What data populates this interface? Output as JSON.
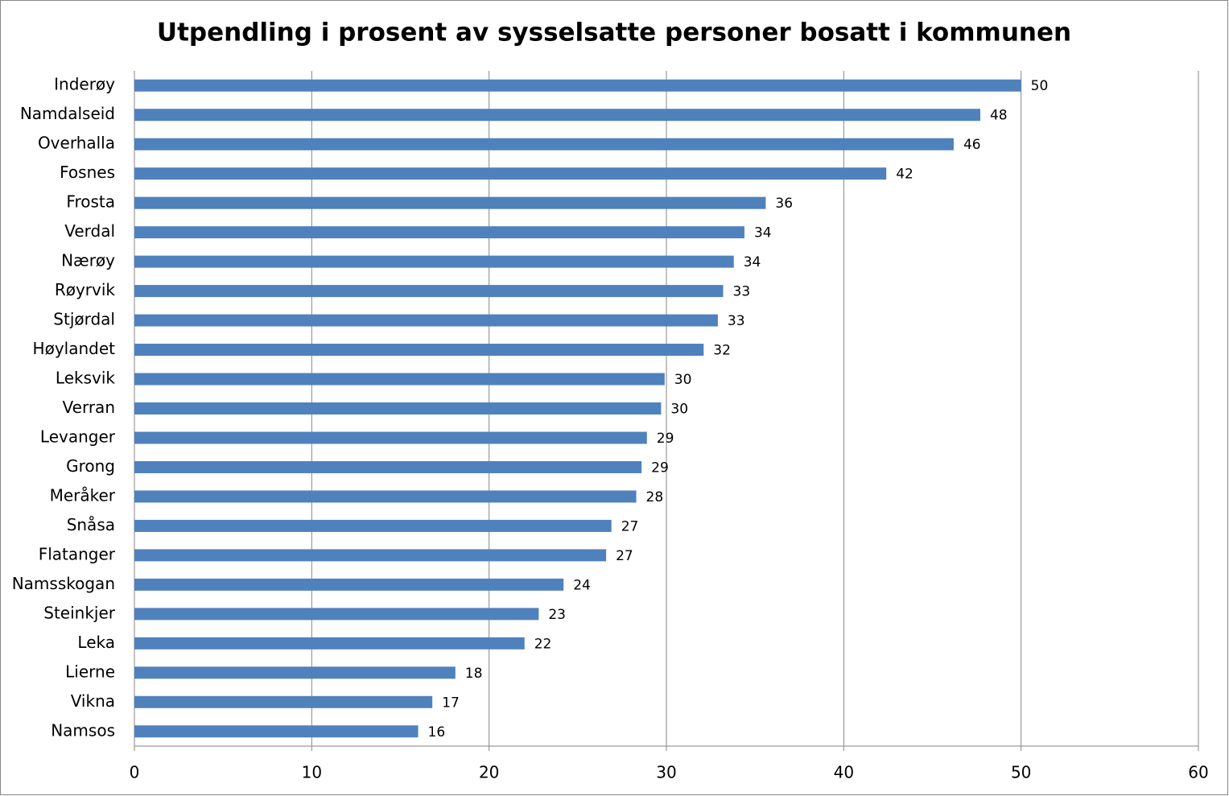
{
  "chart_data": {
    "type": "bar",
    "orientation": "horizontal",
    "title": "Utpendling i prosent av sysselsatte personer bosatt i kommunen",
    "categories": [
      "Inderøy",
      "Namdalseid",
      "Overhalla",
      "Fosnes",
      "Frosta",
      "Verdal",
      "Nærøy",
      "Røyrvik",
      "Stjørdal",
      "Høylandet",
      "Leksvik",
      "Verran",
      "Levanger",
      "Grong",
      "Meråker",
      "Snåsa",
      "Flatanger",
      "Namsskogan",
      "Steinkjer",
      "Leka",
      "Lierne",
      "Vikna",
      "Namsos"
    ],
    "values": [
      50.0,
      47.7,
      46.2,
      42.4,
      35.6,
      34.4,
      33.8,
      33.2,
      32.9,
      32.1,
      29.9,
      29.7,
      28.9,
      28.6,
      28.3,
      26.9,
      26.6,
      24.2,
      22.8,
      22.0,
      18.1,
      16.8,
      16.0
    ],
    "value_labels": [
      "50",
      "48",
      "46",
      "42",
      "36",
      "34",
      "34",
      "33",
      "33",
      "32",
      "30",
      "30",
      "29",
      "29",
      "28",
      "27",
      "27",
      "24",
      "23",
      "22",
      "18",
      "17",
      "16"
    ],
    "color": "#4f81bd",
    "xlim": [
      0,
      60
    ],
    "xticks": [
      0,
      10,
      20,
      30,
      40,
      50,
      60
    ],
    "grid": true
  }
}
